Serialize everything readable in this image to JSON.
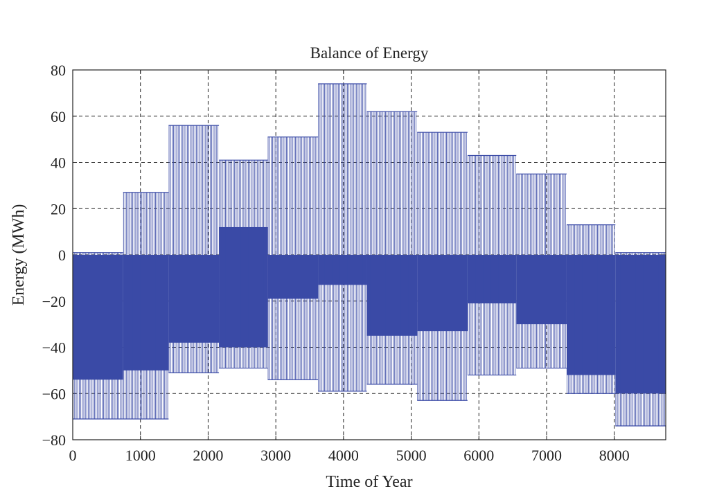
{
  "chart_data": {
    "type": "bar",
    "title": "Balance of Energy",
    "xlabel": "Time of Year",
    "ylabel": "Energy (MWh)",
    "xlim": [
      0,
      8760
    ],
    "ylim": [
      -80,
      80
    ],
    "xticks": [
      0,
      1000,
      2000,
      3000,
      4000,
      5000,
      6000,
      7000,
      8000
    ],
    "yticks": [
      -80,
      -60,
      -40,
      -20,
      0,
      20,
      40,
      60,
      80
    ],
    "xtick_labels": [
      "0",
      "1000",
      "2000",
      "3000",
      "4000",
      "5000",
      "6000",
      "7000",
      "8000"
    ],
    "ytick_labels": [
      "−80",
      "−60",
      "−40",
      "−20",
      "0",
      "20",
      "40",
      "60",
      "80"
    ],
    "grid": true,
    "color": "#3a4aa6",
    "series": [
      {
        "x_start": [
          0,
          744,
          1416,
          2160,
          2880,
          3624,
          4344,
          5088,
          5832,
          6552,
          7296,
          8016
        ],
        "x_end": [
          744,
          1416,
          2160,
          2880,
          3624,
          4344,
          5088,
          5832,
          6552,
          7296,
          8016,
          8760
        ],
        "max": [
          1,
          27,
          56,
          41,
          51,
          74,
          62,
          53,
          43,
          35,
          13,
          1
        ],
        "min": [
          -71,
          -71,
          -51,
          -49,
          -54,
          -59,
          -56,
          -63,
          -52,
          -49,
          -60,
          -74
        ],
        "solid_top": [
          0,
          0,
          0,
          12,
          0,
          0,
          0,
          0,
          0,
          0,
          0,
          0
        ],
        "solid_bottom": [
          -54,
          -50,
          -38,
          -40,
          -19,
          -13,
          -35,
          -33,
          -21,
          -30,
          -52,
          -60
        ]
      }
    ]
  }
}
